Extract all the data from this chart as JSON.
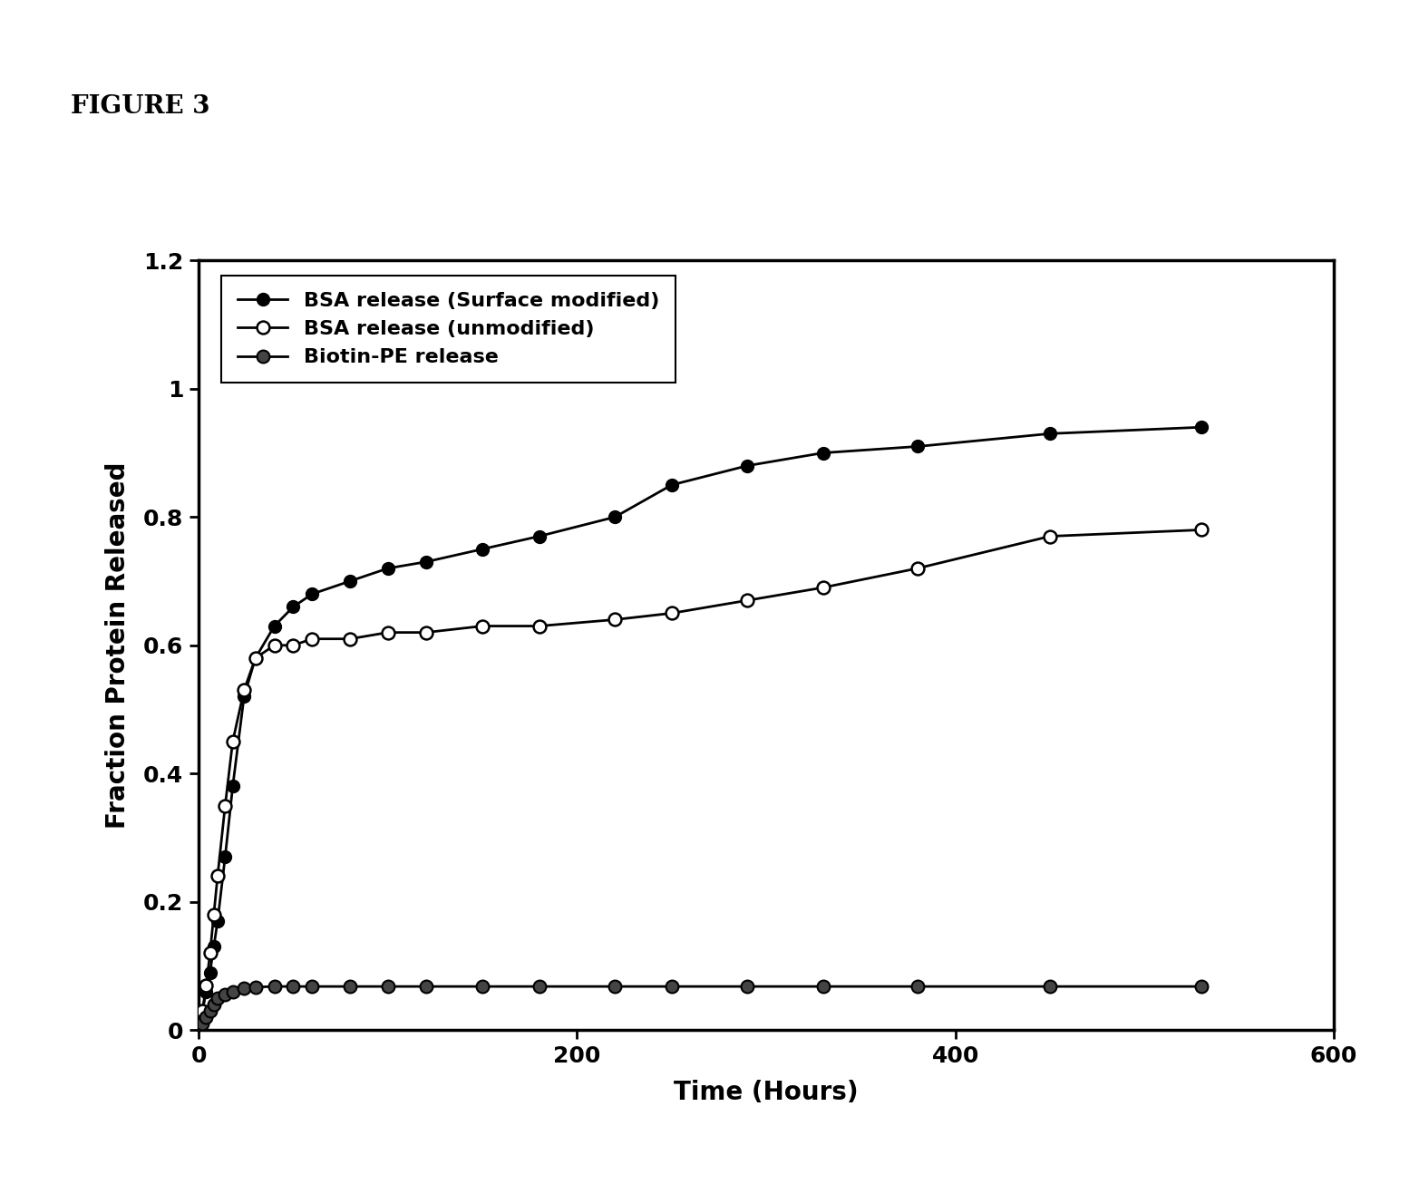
{
  "title": "FIGURE 3",
  "xlabel": "Time (Hours)",
  "ylabel": "Fraction Protein Released",
  "xlim": [
    0,
    600
  ],
  "ylim": [
    0,
    1.2
  ],
  "xticks": [
    0,
    200,
    400,
    600
  ],
  "ytick_vals": [
    0,
    0.2,
    0.4,
    0.6,
    0.8,
    1.0,
    1.2
  ],
  "ytick_labels": [
    "0",
    "0.2",
    "0.4",
    "0.6",
    "0.8",
    "1",
    "1.2"
  ],
  "bsa_surface_x": [
    0,
    2,
    4,
    6,
    8,
    10,
    14,
    18,
    24,
    30,
    40,
    50,
    60,
    80,
    100,
    120,
    150,
    180,
    220,
    250,
    290,
    330,
    380,
    450,
    530
  ],
  "bsa_surface_y": [
    0,
    0.03,
    0.06,
    0.09,
    0.13,
    0.17,
    0.27,
    0.38,
    0.52,
    0.58,
    0.63,
    0.66,
    0.68,
    0.7,
    0.72,
    0.73,
    0.75,
    0.77,
    0.8,
    0.85,
    0.88,
    0.9,
    0.91,
    0.93,
    0.94
  ],
  "bsa_unmod_x": [
    0,
    2,
    4,
    6,
    8,
    10,
    14,
    18,
    24,
    30,
    40,
    50,
    60,
    80,
    100,
    120,
    150,
    180,
    220,
    250,
    290,
    330,
    380,
    450,
    530
  ],
  "bsa_unmod_y": [
    0,
    0.03,
    0.07,
    0.12,
    0.18,
    0.24,
    0.35,
    0.45,
    0.53,
    0.58,
    0.6,
    0.6,
    0.61,
    0.61,
    0.62,
    0.62,
    0.63,
    0.63,
    0.64,
    0.65,
    0.67,
    0.69,
    0.72,
    0.77,
    0.78
  ],
  "biotin_x": [
    0,
    2,
    4,
    6,
    8,
    10,
    14,
    18,
    24,
    30,
    40,
    50,
    60,
    80,
    100,
    120,
    150,
    180,
    220,
    250,
    290,
    330,
    380,
    450,
    530
  ],
  "biotin_y": [
    0,
    0.01,
    0.02,
    0.03,
    0.04,
    0.05,
    0.055,
    0.06,
    0.065,
    0.067,
    0.068,
    0.068,
    0.068,
    0.068,
    0.068,
    0.068,
    0.068,
    0.068,
    0.068,
    0.068,
    0.068,
    0.068,
    0.068,
    0.068,
    0.068
  ],
  "legend_labels": [
    "BSA release (Surface modified)",
    "BSA release (unmodified)",
    "Biotin-PE release"
  ],
  "line_color": "#000000",
  "background_color": "#ffffff",
  "figure_label_fontsize": 20,
  "axis_label_fontsize": 20,
  "tick_fontsize": 18,
  "legend_fontsize": 16,
  "marker_size": 10,
  "linewidth": 2.0
}
